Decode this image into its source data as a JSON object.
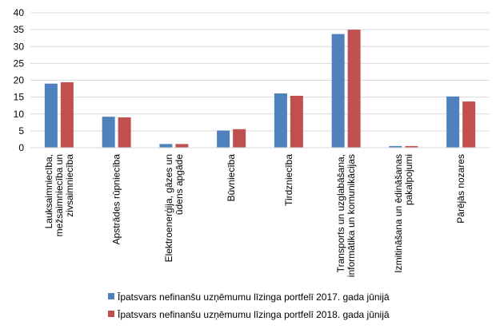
{
  "chart_data": {
    "type": "bar",
    "categories": [
      [
        "Lauksaimniecība,",
        "mežsaimniecība un",
        "zivsaimniecība"
      ],
      [
        "Apstrādes rūpniecība"
      ],
      [
        "Elektroenerģija, gāzes un",
        "ūdens apgāde"
      ],
      [
        "Būvniecība"
      ],
      [
        "Tirdzniecība"
      ],
      [
        "Transports un uzglabāšana,",
        "informātika un komunikācijas"
      ],
      [
        "Izmitināšana un ēdināšanas",
        "pakalpojumi"
      ],
      [
        "Pārējās nozares"
      ]
    ],
    "series": [
      {
        "name": "Īpatsvars nefinanšu uzņēmumu līzinga portfelī 2017. gada jūnijā",
        "color": "#4F81BD",
        "values": [
          19.0,
          9.2,
          1.1,
          5.1,
          16.1,
          33.7,
          0.5,
          15.2
        ]
      },
      {
        "name": "Īpatsvars nefinanšu uzņēmumu līzinga portfelī 2018. gada jūnijā",
        "color": "#C0504D",
        "values": [
          19.4,
          9.0,
          1.1,
          5.5,
          15.4,
          35.0,
          0.5,
          13.7
        ]
      }
    ],
    "yticks": [
      "0",
      "5",
      "10",
      "15",
      "20",
      "25",
      "30",
      "35",
      "40"
    ],
    "ylim": [
      0,
      40
    ],
    "grid": true,
    "legend": "bottom",
    "title": "",
    "xlabel": "",
    "ylabel": ""
  }
}
